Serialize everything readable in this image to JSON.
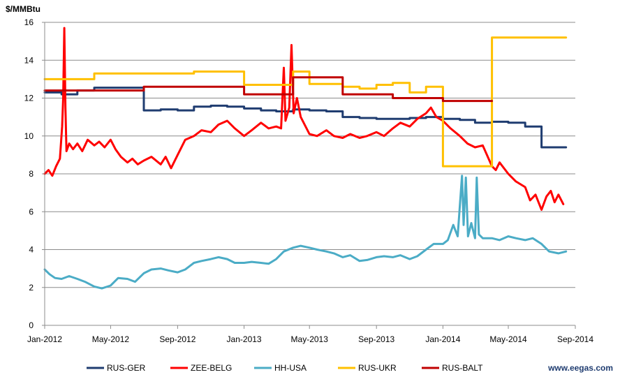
{
  "chart_data": {
    "type": "line",
    "ylabel": "$/MMBtu",
    "ylim": [
      0,
      16
    ],
    "yticks": [
      0,
      2,
      4,
      6,
      8,
      10,
      12,
      14,
      16
    ],
    "xlim": [
      "2012-01-01",
      "2014-09-01"
    ],
    "xticks": [
      {
        "date": "2012-01-01",
        "label": "Jan-2012"
      },
      {
        "date": "2012-05-01",
        "label": "May-2012"
      },
      {
        "date": "2012-09-01",
        "label": "Sep-2012"
      },
      {
        "date": "2013-01-01",
        "label": "Jan-2013"
      },
      {
        "date": "2013-05-01",
        "label": "May-2013"
      },
      {
        "date": "2013-09-01",
        "label": "Sep-2013"
      },
      {
        "date": "2014-01-01",
        "label": "Jan-2014"
      },
      {
        "date": "2014-05-01",
        "label": "May-2014"
      },
      {
        "date": "2014-09-01",
        "label": "Sep-2014"
      }
    ],
    "grid": "horizontal",
    "legend_position": "bottom",
    "source_label": "www.eegas.com",
    "series": [
      {
        "name": "RUS-GER",
        "color": "#1f3c70",
        "step": true,
        "points": [
          [
            "2012-01-01",
            12.3
          ],
          [
            "2012-02-01",
            12.2
          ],
          [
            "2012-03-01",
            12.4
          ],
          [
            "2012-04-01",
            12.55
          ],
          [
            "2012-07-01",
            11.35
          ],
          [
            "2012-08-01",
            11.4
          ],
          [
            "2012-09-01",
            11.35
          ],
          [
            "2012-10-01",
            11.55
          ],
          [
            "2012-11-01",
            11.6
          ],
          [
            "2012-12-01",
            11.55
          ],
          [
            "2013-01-01",
            11.45
          ],
          [
            "2013-02-01",
            11.35
          ],
          [
            "2013-03-01",
            11.3
          ],
          [
            "2013-04-01",
            11.4
          ],
          [
            "2013-05-01",
            11.35
          ],
          [
            "2013-06-01",
            11.3
          ],
          [
            "2013-07-01",
            11.0
          ],
          [
            "2013-08-01",
            10.95
          ],
          [
            "2013-09-01",
            10.9
          ],
          [
            "2013-10-01",
            10.9
          ],
          [
            "2013-11-01",
            10.95
          ],
          [
            "2013-12-01",
            11.0
          ],
          [
            "2014-01-01",
            10.9
          ],
          [
            "2014-02-01",
            10.85
          ],
          [
            "2014-03-01",
            10.7
          ],
          [
            "2014-04-01",
            10.75
          ],
          [
            "2014-05-01",
            10.7
          ],
          [
            "2014-06-01",
            10.5
          ],
          [
            "2014-07-01",
            9.4
          ],
          [
            "2014-08-01",
            9.4
          ],
          [
            "2014-08-15",
            9.4
          ]
        ]
      },
      {
        "name": "ZEE-BELG",
        "color": "#ff0000",
        "step": false,
        "points": [
          [
            "2012-01-01",
            8.0
          ],
          [
            "2012-01-08",
            8.2
          ],
          [
            "2012-01-15",
            7.9
          ],
          [
            "2012-01-22",
            8.4
          ],
          [
            "2012-01-29",
            8.8
          ],
          [
            "2012-02-02",
            10.5
          ],
          [
            "2012-02-04",
            12.0
          ],
          [
            "2012-02-06",
            15.7
          ],
          [
            "2012-02-08",
            11.5
          ],
          [
            "2012-02-10",
            9.2
          ],
          [
            "2012-02-15",
            9.6
          ],
          [
            "2012-02-22",
            9.3
          ],
          [
            "2012-03-01",
            9.6
          ],
          [
            "2012-03-10",
            9.2
          ],
          [
            "2012-03-20",
            9.8
          ],
          [
            "2012-04-01",
            9.5
          ],
          [
            "2012-04-10",
            9.7
          ],
          [
            "2012-04-20",
            9.4
          ],
          [
            "2012-05-01",
            9.8
          ],
          [
            "2012-05-10",
            9.3
          ],
          [
            "2012-05-20",
            8.9
          ],
          [
            "2012-06-01",
            8.6
          ],
          [
            "2012-06-10",
            8.8
          ],
          [
            "2012-06-20",
            8.5
          ],
          [
            "2012-07-01",
            8.7
          ],
          [
            "2012-07-15",
            8.9
          ],
          [
            "2012-08-01",
            8.5
          ],
          [
            "2012-08-10",
            8.9
          ],
          [
            "2012-08-20",
            8.3
          ],
          [
            "2012-09-01",
            9.0
          ],
          [
            "2012-09-15",
            9.8
          ],
          [
            "2012-10-01",
            10.0
          ],
          [
            "2012-10-15",
            10.3
          ],
          [
            "2012-11-01",
            10.2
          ],
          [
            "2012-11-15",
            10.6
          ],
          [
            "2012-12-01",
            10.8
          ],
          [
            "2012-12-15",
            10.4
          ],
          [
            "2013-01-01",
            10.0
          ],
          [
            "2013-01-15",
            10.3
          ],
          [
            "2013-02-01",
            10.7
          ],
          [
            "2013-02-15",
            10.4
          ],
          [
            "2013-03-01",
            10.5
          ],
          [
            "2013-03-10",
            10.4
          ],
          [
            "2013-03-15",
            13.6
          ],
          [
            "2013-03-18",
            10.8
          ],
          [
            "2013-03-25",
            11.5
          ],
          [
            "2013-03-29",
            14.8
          ],
          [
            "2013-04-02",
            11.2
          ],
          [
            "2013-04-08",
            12.0
          ],
          [
            "2013-04-15",
            11.0
          ],
          [
            "2013-05-01",
            10.1
          ],
          [
            "2013-05-15",
            10.0
          ],
          [
            "2013-06-01",
            10.3
          ],
          [
            "2013-06-15",
            10.0
          ],
          [
            "2013-07-01",
            9.9
          ],
          [
            "2013-07-15",
            10.1
          ],
          [
            "2013-08-01",
            9.9
          ],
          [
            "2013-08-15",
            10.0
          ],
          [
            "2013-09-01",
            10.2
          ],
          [
            "2013-09-15",
            10.0
          ],
          [
            "2013-10-01",
            10.4
          ],
          [
            "2013-10-15",
            10.7
          ],
          [
            "2013-11-01",
            10.5
          ],
          [
            "2013-11-15",
            10.9
          ],
          [
            "2013-12-01",
            11.2
          ],
          [
            "2013-12-10",
            11.5
          ],
          [
            "2013-12-20",
            11.0
          ],
          [
            "2014-01-01",
            10.8
          ],
          [
            "2014-01-15",
            10.4
          ],
          [
            "2014-02-01",
            10.0
          ],
          [
            "2014-02-15",
            9.6
          ],
          [
            "2014-03-01",
            9.4
          ],
          [
            "2014-03-15",
            9.5
          ],
          [
            "2014-04-01",
            8.4
          ],
          [
            "2014-04-08",
            8.2
          ],
          [
            "2014-04-15",
            8.6
          ],
          [
            "2014-05-01",
            8.0
          ],
          [
            "2014-05-15",
            7.6
          ],
          [
            "2014-06-01",
            7.3
          ],
          [
            "2014-06-10",
            6.6
          ],
          [
            "2014-06-20",
            6.9
          ],
          [
            "2014-07-01",
            6.1
          ],
          [
            "2014-07-10",
            6.8
          ],
          [
            "2014-07-18",
            7.1
          ],
          [
            "2014-07-25",
            6.5
          ],
          [
            "2014-08-01",
            6.9
          ],
          [
            "2014-08-10",
            6.4
          ]
        ]
      },
      {
        "name": "HH-USA",
        "color": "#4bacc6",
        "step": false,
        "points": [
          [
            "2012-01-01",
            2.95
          ],
          [
            "2012-01-10",
            2.7
          ],
          [
            "2012-01-20",
            2.5
          ],
          [
            "2012-02-01",
            2.45
          ],
          [
            "2012-02-15",
            2.6
          ],
          [
            "2012-03-01",
            2.45
          ],
          [
            "2012-03-15",
            2.3
          ],
          [
            "2012-04-01",
            2.05
          ],
          [
            "2012-04-15",
            1.95
          ],
          [
            "2012-05-01",
            2.1
          ],
          [
            "2012-05-15",
            2.5
          ],
          [
            "2012-06-01",
            2.45
          ],
          [
            "2012-06-15",
            2.3
          ],
          [
            "2012-07-01",
            2.75
          ],
          [
            "2012-07-15",
            2.95
          ],
          [
            "2012-08-01",
            3.0
          ],
          [
            "2012-08-15",
            2.9
          ],
          [
            "2012-09-01",
            2.8
          ],
          [
            "2012-09-15",
            2.95
          ],
          [
            "2012-10-01",
            3.3
          ],
          [
            "2012-10-15",
            3.4
          ],
          [
            "2012-11-01",
            3.5
          ],
          [
            "2012-11-15",
            3.6
          ],
          [
            "2012-12-01",
            3.5
          ],
          [
            "2012-12-15",
            3.3
          ],
          [
            "2013-01-01",
            3.3
          ],
          [
            "2013-01-15",
            3.35
          ],
          [
            "2013-02-01",
            3.3
          ],
          [
            "2013-02-15",
            3.25
          ],
          [
            "2013-03-01",
            3.5
          ],
          [
            "2013-03-15",
            3.9
          ],
          [
            "2013-04-01",
            4.1
          ],
          [
            "2013-04-15",
            4.2
          ],
          [
            "2013-05-01",
            4.1
          ],
          [
            "2013-05-15",
            4.0
          ],
          [
            "2013-06-01",
            3.9
          ],
          [
            "2013-06-15",
            3.8
          ],
          [
            "2013-07-01",
            3.6
          ],
          [
            "2013-07-15",
            3.7
          ],
          [
            "2013-08-01",
            3.4
          ],
          [
            "2013-08-15",
            3.45
          ],
          [
            "2013-09-01",
            3.6
          ],
          [
            "2013-09-15",
            3.65
          ],
          [
            "2013-10-01",
            3.6
          ],
          [
            "2013-10-15",
            3.7
          ],
          [
            "2013-11-01",
            3.5
          ],
          [
            "2013-11-15",
            3.65
          ],
          [
            "2013-12-01",
            4.0
          ],
          [
            "2013-12-15",
            4.3
          ],
          [
            "2014-01-01",
            4.3
          ],
          [
            "2014-01-10",
            4.5
          ],
          [
            "2014-01-20",
            5.3
          ],
          [
            "2014-01-28",
            4.7
          ],
          [
            "2014-02-05",
            7.9
          ],
          [
            "2014-02-08",
            5.3
          ],
          [
            "2014-02-12",
            7.8
          ],
          [
            "2014-02-16",
            4.7
          ],
          [
            "2014-02-22",
            5.4
          ],
          [
            "2014-03-01",
            4.6
          ],
          [
            "2014-03-04",
            7.8
          ],
          [
            "2014-03-08",
            4.8
          ],
          [
            "2014-03-15",
            4.6
          ],
          [
            "2014-04-01",
            4.6
          ],
          [
            "2014-04-15",
            4.5
          ],
          [
            "2014-05-01",
            4.7
          ],
          [
            "2014-05-15",
            4.6
          ],
          [
            "2014-06-01",
            4.5
          ],
          [
            "2014-06-15",
            4.6
          ],
          [
            "2014-07-01",
            4.3
          ],
          [
            "2014-07-15",
            3.9
          ],
          [
            "2014-08-01",
            3.8
          ],
          [
            "2014-08-15",
            3.9
          ]
        ]
      },
      {
        "name": "RUS-UKR",
        "color": "#ffc000",
        "step": true,
        "points": [
          [
            "2012-01-01",
            13.0
          ],
          [
            "2012-04-01",
            13.3
          ],
          [
            "2012-10-01",
            13.4
          ],
          [
            "2013-01-01",
            12.7
          ],
          [
            "2013-04-01",
            13.4
          ],
          [
            "2013-05-01",
            12.75
          ],
          [
            "2013-07-01",
            12.6
          ],
          [
            "2013-08-01",
            12.5
          ],
          [
            "2013-09-01",
            12.7
          ],
          [
            "2013-10-01",
            12.8
          ],
          [
            "2013-11-01",
            12.3
          ],
          [
            "2013-12-01",
            12.6
          ],
          [
            "2014-01-01",
            8.4
          ],
          [
            "2014-04-01",
            15.2
          ],
          [
            "2014-08-15",
            15.2
          ]
        ]
      },
      {
        "name": "RUS-BALT",
        "color": "#c00000",
        "step": true,
        "points": [
          [
            "2012-01-01",
            12.4
          ],
          [
            "2012-04-01",
            12.4
          ],
          [
            "2012-07-01",
            12.6
          ],
          [
            "2013-01-01",
            12.2
          ],
          [
            "2013-04-01",
            13.1
          ],
          [
            "2013-07-01",
            12.2
          ],
          [
            "2013-10-01",
            12.0
          ],
          [
            "2014-01-01",
            11.85
          ],
          [
            "2014-04-01",
            11.85
          ]
        ]
      }
    ]
  }
}
